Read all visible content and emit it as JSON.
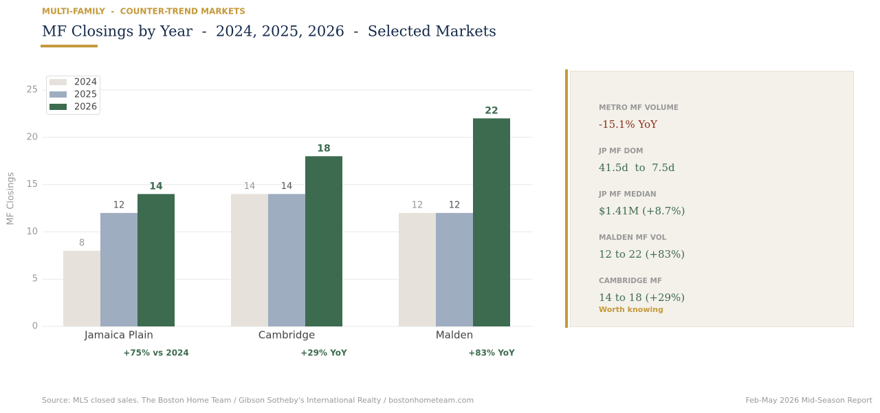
{
  "kicker": "MULTI-FAMILY  -  COUNTER-TREND MARKETS",
  "chart_data": {
    "type": "bar",
    "title": "MF Closings by Year  -  2024, 2025, 2026  -  Selected Markets",
    "y_label": "MF Closings",
    "categories": [
      "Jamaica Plain",
      "Cambridge",
      "Malden"
    ],
    "series": [
      {
        "name": "2024",
        "color": "#e6e1da",
        "label_color": "#999999",
        "values": [
          8,
          14,
          12
        ]
      },
      {
        "name": "2025",
        "color": "#9eadc0",
        "label_color": "#555555",
        "values": [
          12,
          14,
          12
        ]
      },
      {
        "name": "2026",
        "color": "#3d6b4f",
        "label_color": "#3d6b4f",
        "values": [
          14,
          18,
          22
        ]
      }
    ],
    "annotations": [
      "+75% vs 2024",
      "+29% YoY",
      "+83% YoY"
    ],
    "ylim": [
      0,
      27.5
    ],
    "yticks": [
      0,
      5,
      10,
      15,
      20,
      25
    ],
    "grid": true,
    "legend": "upper-left"
  },
  "panel": {
    "items": [
      {
        "label": "METRO MF VOLUME",
        "value": "-15.1% YoY",
        "color": "#8b2e1a"
      },
      {
        "label": "JP MF DOM",
        "value": "41.5d  to  7.5d",
        "color": "#3d6b4f"
      },
      {
        "label": "JP MF MEDIAN",
        "value": "$1.41M (+8.7%)",
        "color": "#3d6b4f"
      },
      {
        "label": "MALDEN MF VOL",
        "value": "12 to 22 (+83%)",
        "color": "#3d6b4f"
      },
      {
        "label": "CAMBRIDGE MF",
        "value": "14 to 18 (+29%)",
        "color": "#3d6b4f"
      }
    ],
    "note": "Worth knowing"
  },
  "footer": {
    "source": "Source: MLS closed sales. The Boston Home Team / Gibson Sotheby's International Realty / bostonhometeam.com",
    "report": "Feb-May 2026 Mid-Season Report"
  }
}
